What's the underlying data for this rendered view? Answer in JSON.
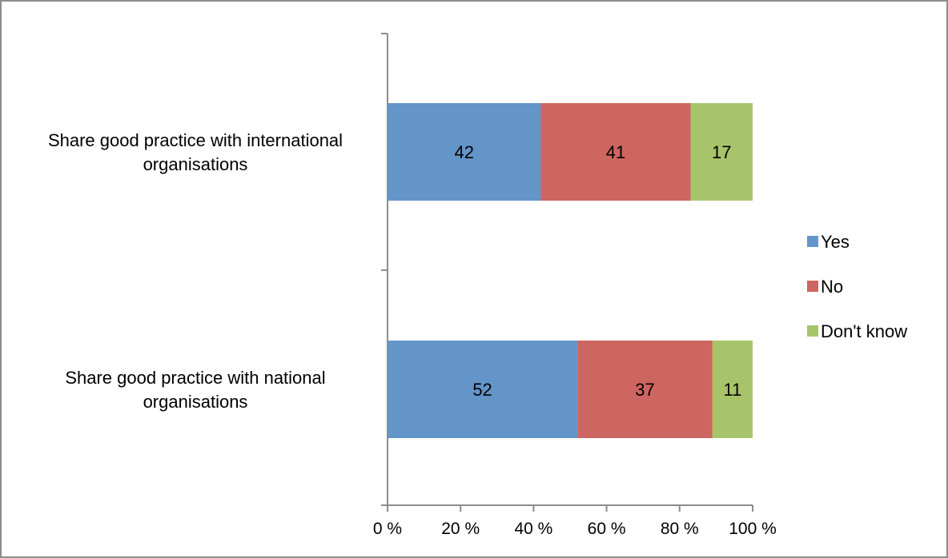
{
  "chart_data": {
    "type": "bar",
    "orientation": "horizontal",
    "stacked": true,
    "categories": [
      [
        "Share good practice with international",
        "organisations"
      ],
      [
        "Share good practice with national",
        "organisations"
      ]
    ],
    "series": [
      {
        "name": "Yes",
        "values": [
          42,
          52
        ],
        "color": "#6495c9"
      },
      {
        "name": "No",
        "values": [
          41,
          37
        ],
        "color": "#cd6560"
      },
      {
        "name": "Don't know",
        "values": [
          17,
          11
        ],
        "color": "#a8c46a"
      }
    ],
    "xlim": [
      0,
      100
    ],
    "x_ticks": [
      "0 %",
      "20 %",
      "40 %",
      "60 %",
      "80 %",
      "100 %"
    ],
    "legend_position": "right",
    "grid": false,
    "title": "",
    "xlabel": "",
    "ylabel": ""
  },
  "colors": {
    "frame": "#8c8c8c",
    "axis": "#8c8c8c"
  }
}
